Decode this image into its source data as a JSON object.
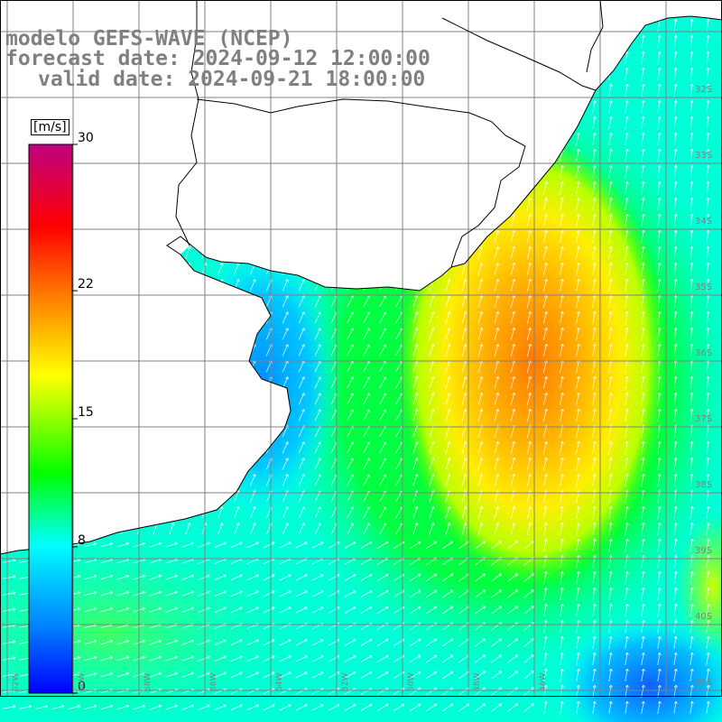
{
  "titles": {
    "model": "modelo GEFS-WAVE (NCEP)",
    "forecast": "forecast date: 2024-09-12 12:00:00",
    "valid": "valid date: 2024-09-21 18:00:00"
  },
  "colorbar": {
    "unit": "[m/s]",
    "ticks": [
      {
        "label": "30",
        "value": 30
      },
      {
        "label": "22",
        "value": 22
      },
      {
        "label": "15",
        "value": 15
      },
      {
        "label": "8",
        "value": 8
      },
      {
        "label": "0",
        "value": 0
      }
    ],
    "min": 0,
    "max": 30,
    "colors": [
      "#0000ff",
      "#0080ff",
      "#00ffff",
      "#00ff00",
      "#ffff00",
      "#ff8000",
      "#ff0000",
      "#c00080"
    ]
  },
  "lat_labels": [
    "32S",
    "33S",
    "34S",
    "35S",
    "36S",
    "37S",
    "38S",
    "39S",
    "40S",
    "41S"
  ],
  "lon_labels": [
    "62W",
    "60W",
    "58W",
    "56W",
    "54W",
    "52W",
    "50W",
    "48W",
    "46W"
  ],
  "colors": {
    "land": "#ffffff",
    "grid": "#808080",
    "coast": "#000000",
    "arrow": "#ffffff"
  }
}
